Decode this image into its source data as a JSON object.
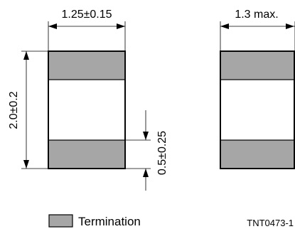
{
  "colors": {
    "termination": "#a6a6a6",
    "body": "#ffffff",
    "line": "#000000"
  },
  "left_view": {
    "width_label": "1.25±0.15",
    "length_label": "2.0±0.2",
    "termination_label": "0.5±0.25"
  },
  "right_view": {
    "thickness_label": "1.3 max."
  },
  "legend": {
    "label": "Termination"
  },
  "drawing_code": "TNT0473-1"
}
